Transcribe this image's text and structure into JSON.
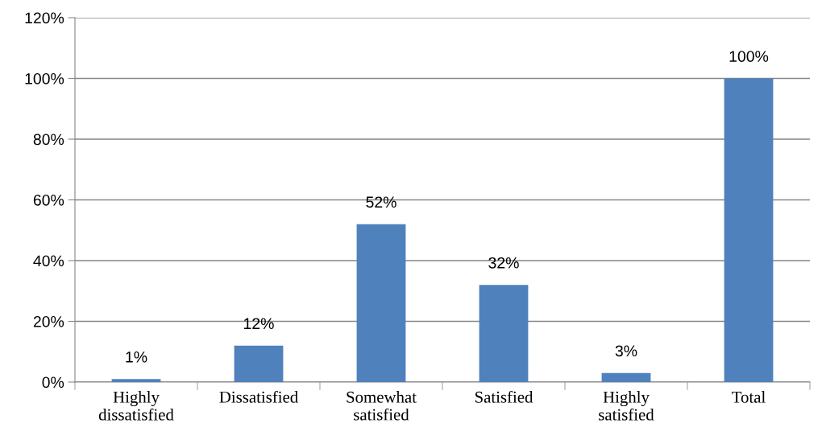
{
  "chart_data": {
    "type": "bar",
    "categories": [
      "Highly\ndissatisfied",
      "Dissatisfied",
      "Somewhat\nsatisfied",
      "Satisfied",
      "Highly\nsatisfied",
      "Total"
    ],
    "values": [
      1,
      12,
      52,
      32,
      3,
      100
    ],
    "value_labels": [
      "1%",
      "12%",
      "52%",
      "32%",
      "3%",
      "100%"
    ],
    "color": "#4f81bd",
    "ylim": [
      0,
      120
    ],
    "yticks": [
      {
        "value": 0,
        "label": "0%"
      },
      {
        "value": 20,
        "label": "20%"
      },
      {
        "value": 40,
        "label": "40%"
      },
      {
        "value": 60,
        "label": "60%"
      },
      {
        "value": 80,
        "label": "80%"
      },
      {
        "value": 100,
        "label": "100%"
      },
      {
        "value": 120,
        "label": "120%"
      }
    ],
    "grid": "y",
    "legend": false
  }
}
